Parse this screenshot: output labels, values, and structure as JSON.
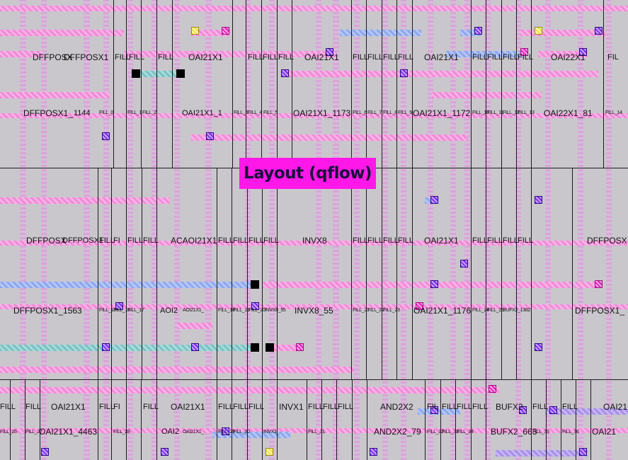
{
  "title": "Layout (qflow)",
  "colors": {
    "background": "#c9c7cc",
    "title_box": "#ff18e8",
    "metal1": "#f28ad8",
    "metal2": "#8ea8ee",
    "via": "#7a2cf0",
    "cell_outline": "#1c1c1c"
  },
  "rows": [
    {
      "id": "row1",
      "labels": [
        "DFFPOSX",
        "DFFPOSX1",
        "FILL",
        "FILL",
        "FILL",
        "OAI21X1",
        "FILL",
        "FILL",
        "FILL",
        "OAI21X1",
        "FILL",
        "FILL",
        "FILL",
        "FILL",
        "OAI21X1",
        "FILL",
        "FILL",
        "FILL",
        "FILL",
        "OAI22X1",
        "FIL"
      ],
      "instances": [
        "DFFPOSX1_",
        "1144",
        "FILL_0",
        "FILL_1",
        "FILL_2",
        "OAI21X1_1",
        "FILL_3",
        "FILL_4",
        "FILL_5",
        "OAI21X1_1173",
        "FILL_6",
        "FILL_7",
        "FILL_8",
        "FILL_9",
        "OAI21X1_1172",
        "FILL_10",
        "FILL_11",
        "FILL_12",
        "FILL_13",
        "OAI22X1_81",
        "FILL_14"
      ]
    },
    {
      "id": "row2",
      "labels": [
        "DFFPOSX",
        "DFFPOSX1",
        "FILL",
        "FI",
        "FILL",
        "FILL",
        "ACAOI21X1",
        "FILL",
        "FILL",
        "FILL",
        "FILL",
        "INVX8",
        "FILL",
        "FILL",
        "FILL",
        "FILL",
        "OAI21X1",
        "FILL",
        "FILL",
        "FILL",
        "FILL",
        "DFFPOSX"
      ],
      "instances": [
        "DFFPOSX1_1563",
        "FILL_15",
        "FILL_16",
        "FILL_17",
        "AOI2",
        "AOI21X1_",
        "FILL_18",
        "FILL_19",
        "FILL_20",
        "INVX8_55",
        "INVX8_55",
        "FILL_21",
        "FILL_22",
        "FILL_23",
        "OAI21X1_1176",
        "FILL_24",
        "FILL_25",
        "BUFX2_1382",
        "DFFPOSX1_"
      ]
    },
    {
      "id": "row3",
      "labels": [
        "FILL",
        "FILL",
        "OAI21X1",
        "FILL",
        "FI",
        "FILL",
        "OAI21X1",
        "FILL",
        "FILL",
        "FILL",
        "INVX1",
        "FILL",
        "FILL",
        "FILL",
        "AND2X2",
        "FIL",
        "FILL",
        "FILL",
        "FILL",
        "BUFX2",
        "FILL",
        "FILL",
        "OAI21"
      ],
      "instances": [
        "FILL_26",
        "FILL_27",
        "OAI21X1_4463",
        "FILL_28",
        "OAI2",
        "OAI21X1_",
        "FILL_29",
        "FILL_30",
        "INVX1_",
        "FILL_31",
        "AND2X2_79",
        "FILL_32",
        "FILL_33",
        "FILL_34",
        "BUFX2_663",
        "FILL_35",
        "FILL_36",
        "OAI21"
      ]
    }
  ]
}
